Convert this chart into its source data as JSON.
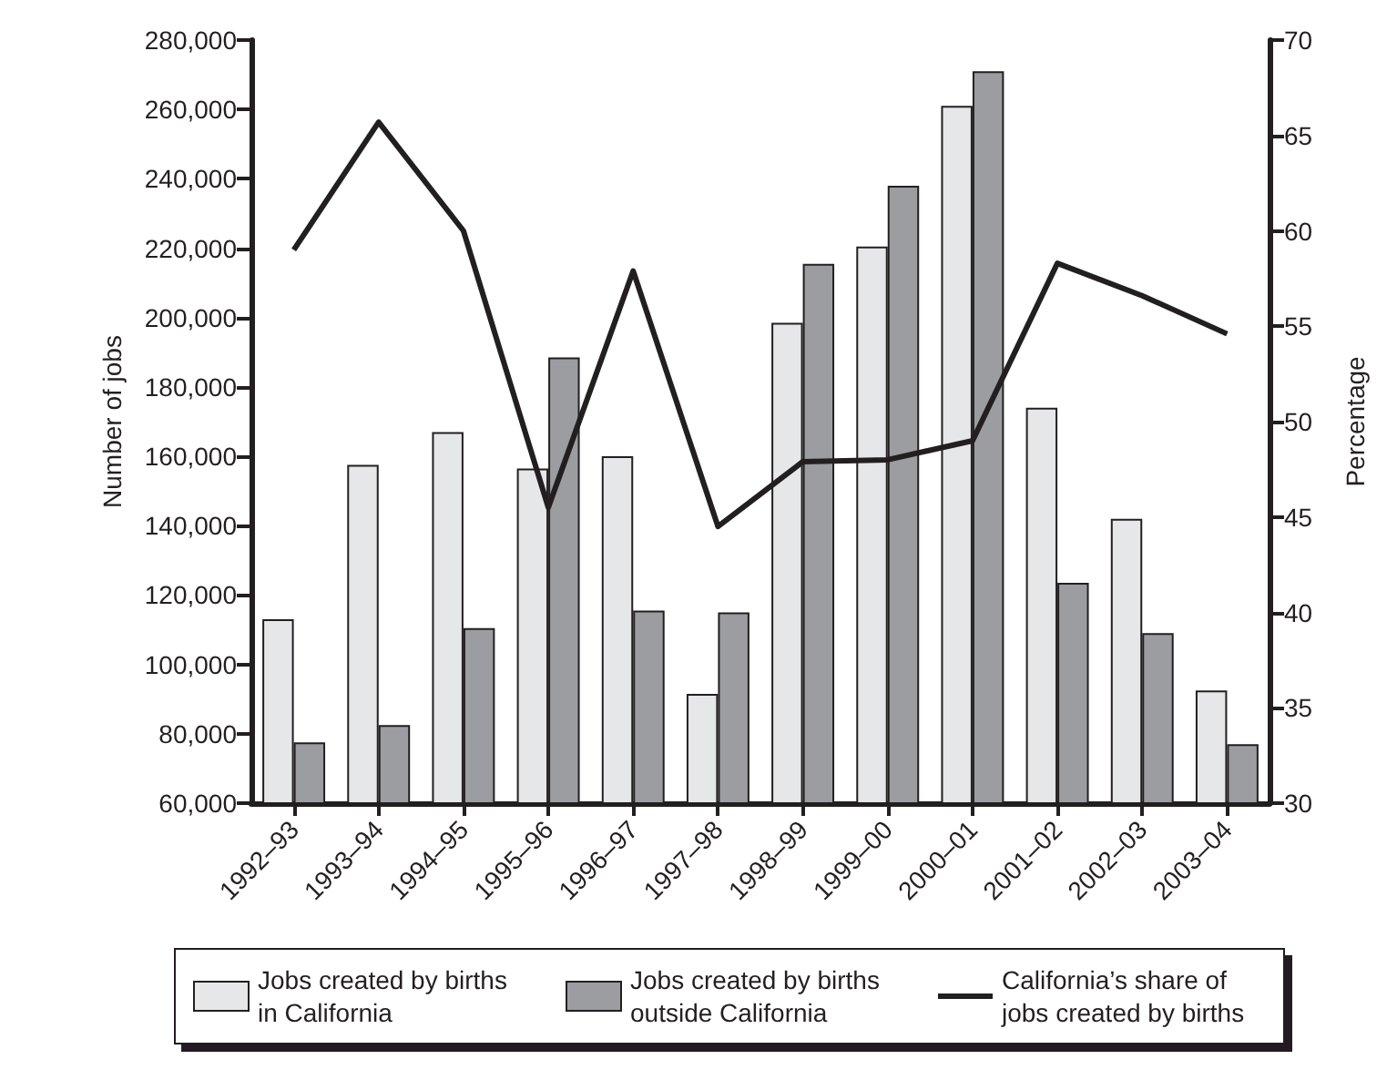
{
  "chart_data": {
    "type": "bar",
    "categories": [
      "1992–93",
      "1993–94",
      "1994–95",
      "1995–96",
      "1996–97",
      "1997–98",
      "1998–99",
      "1999–00",
      "2000–01",
      "2001–02",
      "2002–03",
      "2003–04"
    ],
    "series": [
      {
        "name": "Jobs created by births in California",
        "color": "#e6e7e9",
        "values": [
          113000,
          157500,
          167000,
          156500,
          160000,
          91500,
          198500,
          220500,
          261000,
          174000,
          142000,
          92500
        ]
      },
      {
        "name": "Jobs created by births outside California",
        "color": "#9c9da1",
        "values": [
          77500,
          82500,
          110500,
          188500,
          115500,
          115000,
          215500,
          238000,
          271000,
          123500,
          109000,
          77000
        ]
      },
      {
        "name": "California’s share of jobs created by births",
        "type": "line",
        "axis": "y2",
        "color": "#231f20",
        "values": [
          59,
          65.7,
          60,
          45.5,
          57.9,
          44.5,
          47.9,
          48,
          49,
          58.3,
          56.6,
          54.6
        ]
      }
    ],
    "ylabel": "Number of jobs",
    "y2label": "Percentage",
    "ylim": [
      60000,
      280000
    ],
    "yticks": [
      {
        "value": 60000,
        "label": "60,000"
      },
      {
        "value": 80000,
        "label": "80,000"
      },
      {
        "value": 100000,
        "label": "100,000"
      },
      {
        "value": 120000,
        "label": "120,000"
      },
      {
        "value": 140000,
        "label": "140,000"
      },
      {
        "value": 160000,
        "label": "160,000"
      },
      {
        "value": 180000,
        "label": "180,000"
      },
      {
        "value": 200000,
        "label": "200,000"
      },
      {
        "value": 220000,
        "label": "220,000"
      },
      {
        "value": 240000,
        "label": "240,000"
      },
      {
        "value": 260000,
        "label": "260,000"
      },
      {
        "value": 280000,
        "label": "280,000"
      }
    ],
    "y2lim": [
      30,
      70
    ],
    "y2ticks": [
      30,
      35,
      40,
      45,
      50,
      55,
      60,
      65,
      70
    ],
    "grid": false,
    "legend": "bottom",
    "marker": "none",
    "line_style": "solid"
  }
}
